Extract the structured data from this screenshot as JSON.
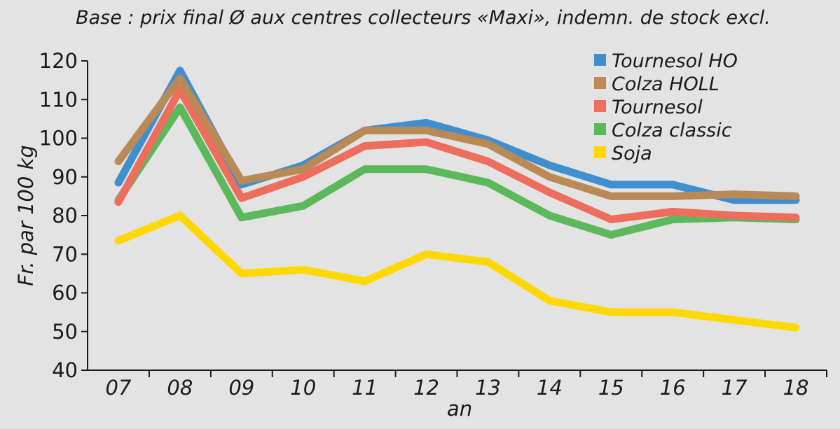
{
  "chart_data": {
    "type": "line",
    "title": "Base : prix final Ø aux centres collecteurs «Maxi», indemn. de stock excl.",
    "xlabel": "an",
    "ylabel": "Fr. par 100 kg",
    "categories": [
      "07",
      "08",
      "09",
      "10",
      "11",
      "12",
      "13",
      "14",
      "15",
      "16",
      "17",
      "18"
    ],
    "y_ticks": [
      40,
      50,
      60,
      70,
      80,
      90,
      100,
      110,
      120
    ],
    "ylim": [
      40,
      120
    ],
    "grid": false,
    "legend_position": "top-right",
    "series": [
      {
        "name": "Soja",
        "color": "#ffd800",
        "values": [
          73.5,
          80,
          65,
          66,
          63,
          70,
          68,
          58,
          55,
          55,
          53,
          51
        ]
      },
      {
        "name": "Colza classic",
        "color": "#5bb85b",
        "values": [
          84,
          108,
          79.5,
          82.5,
          92,
          92,
          88.5,
          80,
          75,
          79,
          79.5,
          79
        ]
      },
      {
        "name": "Tournesol",
        "color": "#ee6e5e",
        "values": [
          83.5,
          112.5,
          84.5,
          90,
          98,
          99,
          94,
          86,
          79,
          81,
          80,
          79.5
        ]
      },
      {
        "name": "Tournesol HO",
        "color": "#3f8fcf",
        "values": [
          88.5,
          117.5,
          88,
          93,
          102,
          104,
          99.5,
          93,
          88,
          88,
          84,
          84
        ]
      },
      {
        "name": "Colza HOLL",
        "color": "#b98a55",
        "values": [
          94,
          115.5,
          89,
          92,
          102,
          102,
          98.5,
          90,
          85,
          85,
          85.5,
          85
        ]
      }
    ],
    "legend_order": [
      "Tournesol HO",
      "Colza HOLL",
      "Tournesol",
      "Colza classic",
      "Soja"
    ]
  }
}
